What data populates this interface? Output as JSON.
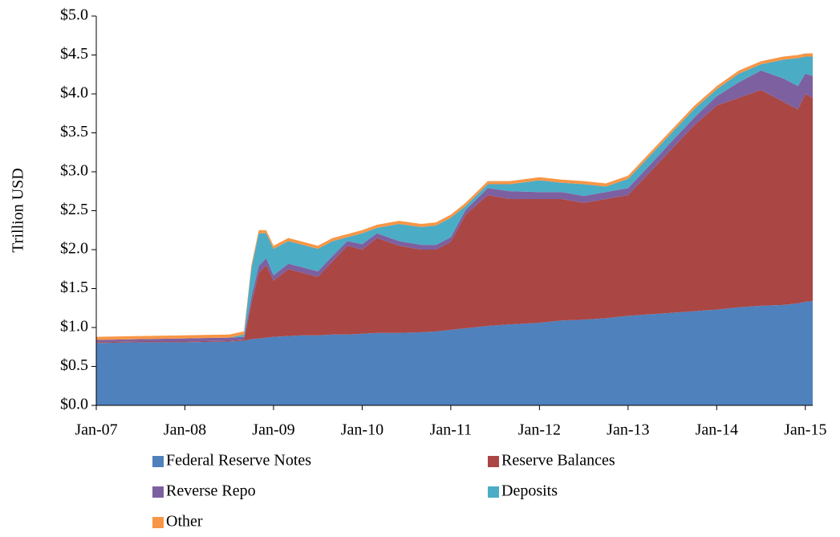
{
  "chart_data": {
    "type": "stacked-area",
    "y_label": "Trillion USD",
    "x": [
      "Jan-07",
      "Jul-07",
      "Jan-08",
      "Jul-08",
      "Sep-08",
      "Oct-08",
      "Nov-08",
      "Dec-08",
      "Jan-09",
      "Mar-09",
      "May-09",
      "Jul-09",
      "Sep-09",
      "Nov-09",
      "Jan-10",
      "Mar-10",
      "Jun-10",
      "Sep-10",
      "Nov-10",
      "Jan-11",
      "Mar-11",
      "Jun-11",
      "Sep-11",
      "Jan-12",
      "Apr-12",
      "Jul-12",
      "Oct-12",
      "Jan-13",
      "Apr-13",
      "Jul-13",
      "Oct-13",
      "Jan-14",
      "Apr-14",
      "Jul-14",
      "Oct-14",
      "Dec-14",
      "Jan-15",
      "Feb-15"
    ],
    "xlim": [
      "Jan-07",
      "Feb-15"
    ],
    "xticks": [
      "Jan-07",
      "Jan-08",
      "Jan-09",
      "Jan-10",
      "Jan-11",
      "Jan-12",
      "Jan-13",
      "Jan-14",
      "Jan-15"
    ],
    "ylim": [
      0,
      5
    ],
    "yticks": [
      {
        "value": 0,
        "label": "$0.0"
      },
      {
        "value": 0.5,
        "label": "$0.5"
      },
      {
        "value": 1,
        "label": "$1.0"
      },
      {
        "value": 1.5,
        "label": "$1.5"
      },
      {
        "value": 2,
        "label": "$2.0"
      },
      {
        "value": 2.5,
        "label": "$2.5"
      },
      {
        "value": 3,
        "label": "$3.0"
      },
      {
        "value": 3.5,
        "label": "$3.5"
      },
      {
        "value": 4,
        "label": "$4.0"
      },
      {
        "value": 4.5,
        "label": "$4.5"
      },
      {
        "value": 5,
        "label": "$5.0"
      }
    ],
    "series": [
      {
        "name": "Federal Reserve Notes",
        "color": "#4f81bd",
        "values": [
          0.8,
          0.81,
          0.81,
          0.82,
          0.83,
          0.85,
          0.86,
          0.87,
          0.88,
          0.89,
          0.9,
          0.9,
          0.91,
          0.91,
          0.92,
          0.93,
          0.93,
          0.94,
          0.95,
          0.97,
          0.99,
          1.02,
          1.04,
          1.06,
          1.09,
          1.1,
          1.12,
          1.15,
          1.17,
          1.19,
          1.21,
          1.23,
          1.26,
          1.28,
          1.29,
          1.31,
          1.33,
          1.34
        ]
      },
      {
        "name": "Reserve Balances",
        "color": "#aa4643",
        "values": [
          0.01,
          0.01,
          0.01,
          0.01,
          0.01,
          0.45,
          0.84,
          0.93,
          0.72,
          0.86,
          0.8,
          0.75,
          0.94,
          1.14,
          1.08,
          1.22,
          1.12,
          1.06,
          1.05,
          1.13,
          1.46,
          1.68,
          1.61,
          1.59,
          1.56,
          1.5,
          1.53,
          1.55,
          1.83,
          2.11,
          2.39,
          2.62,
          2.69,
          2.77,
          2.61,
          2.49,
          2.67,
          2.61
        ]
      },
      {
        "name": "Reverse Repo",
        "color": "#7d60a0",
        "values": [
          0.03,
          0.03,
          0.04,
          0.04,
          0.04,
          0.09,
          0.09,
          0.09,
          0.07,
          0.07,
          0.07,
          0.07,
          0.07,
          0.06,
          0.07,
          0.06,
          0.06,
          0.06,
          0.06,
          0.06,
          0.06,
          0.09,
          0.1,
          0.09,
          0.09,
          0.09,
          0.09,
          0.09,
          0.09,
          0.1,
          0.1,
          0.12,
          0.2,
          0.25,
          0.3,
          0.3,
          0.26,
          0.28
        ]
      },
      {
        "name": "Deposits",
        "color": "#4bacc6",
        "values": [
          0,
          0,
          0,
          0,
          0.03,
          0.37,
          0.42,
          0.32,
          0.34,
          0.29,
          0.29,
          0.29,
          0.19,
          0.05,
          0.14,
          0.07,
          0.22,
          0.23,
          0.25,
          0.25,
          0.05,
          0.05,
          0.09,
          0.15,
          0.12,
          0.15,
          0.07,
          0.12,
          0.12,
          0.11,
          0.11,
          0.09,
          0.11,
          0.08,
          0.24,
          0.36,
          0.22,
          0.25
        ]
      },
      {
        "name": "Other",
        "color": "#f79646",
        "values": [
          0.04,
          0.04,
          0.04,
          0.04,
          0.04,
          0.04,
          0.04,
          0.04,
          0.04,
          0.04,
          0.04,
          0.04,
          0.04,
          0.04,
          0.04,
          0.04,
          0.04,
          0.04,
          0.04,
          0.04,
          0.04,
          0.04,
          0.04,
          0.04,
          0.04,
          0.04,
          0.04,
          0.04,
          0.04,
          0.04,
          0.04,
          0.04,
          0.04,
          0.04,
          0.04,
          0.04,
          0.04,
          0.04
        ]
      }
    ]
  }
}
